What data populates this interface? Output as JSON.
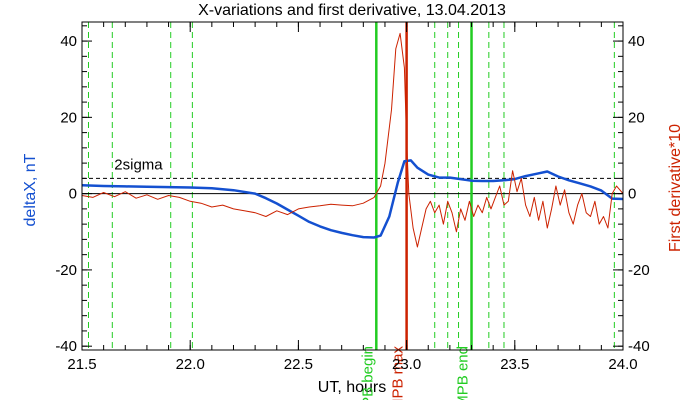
{
  "chart_data": {
    "type": "line",
    "title": "X-variations and first derivative, 13.04.2013",
    "xlabel": "UT, hours",
    "ylabel_left": "deltaX, nT",
    "ylabel_right": "First derivative*10",
    "xlim": [
      21.5,
      24.0
    ],
    "ylim": [
      -41,
      45
    ],
    "x_ticks": [
      "21.5",
      "22.0",
      "22.5",
      "23.0",
      "23.5",
      "24.0"
    ],
    "y_ticks": [
      "-40",
      "-20",
      "0",
      "20",
      "40"
    ],
    "colors": {
      "deltaX": "#1450d0",
      "derivative": "#cc2200",
      "markers": "#22cc22",
      "peak": "#cc2200",
      "axes": "#000000"
    },
    "threshold": {
      "label": "2sigma",
      "y": 4
    },
    "zero_line": 0,
    "grid_lines_x": [
      21.53,
      21.64,
      21.91,
      22.01,
      23.13,
      23.19,
      23.24,
      23.38,
      23.45,
      23.96
    ],
    "events": [
      {
        "label": "MPB begin",
        "x": 22.86,
        "color": "#22cc22"
      },
      {
        "label": "MPB max",
        "x": 23.0,
        "color": "#cc2200"
      },
      {
        "label": "MPB end",
        "x": 23.3,
        "color": "#22cc22"
      }
    ],
    "series": [
      {
        "name": "deltaX",
        "color": "#1450d0",
        "x": [
          21.5,
          21.6,
          21.7,
          21.8,
          21.9,
          22.0,
          22.1,
          22.2,
          22.3,
          22.35,
          22.4,
          22.45,
          22.5,
          22.55,
          22.6,
          22.65,
          22.7,
          22.75,
          22.8,
          22.85,
          22.88,
          22.92,
          22.96,
          22.99,
          23.02,
          23.05,
          23.1,
          23.15,
          23.2,
          23.25,
          23.3,
          23.35,
          23.4,
          23.45,
          23.5,
          23.55,
          23.6,
          23.65,
          23.7,
          23.75,
          23.8,
          23.85,
          23.9,
          23.95,
          24.0
        ],
        "y": [
          2.2,
          2,
          1.9,
          1.8,
          1.7,
          1.6,
          1.4,
          0.9,
          0,
          -1.2,
          -2.6,
          -4.2,
          -5.8,
          -7.4,
          -8.6,
          -9.6,
          -10.3,
          -10.9,
          -11.4,
          -11.5,
          -11,
          -6,
          3,
          8.5,
          8.7,
          6.8,
          5,
          4.2,
          4.2,
          3.8,
          3.4,
          3.3,
          3.3,
          3.5,
          3.8,
          4.6,
          5.2,
          5.8,
          4.5,
          3.5,
          2.7,
          1.9,
          0.8,
          -1.3,
          -1.4
        ]
      },
      {
        "name": "derivative",
        "color": "#cc2200",
        "x": [
          21.5,
          21.55,
          21.6,
          21.65,
          21.7,
          21.75,
          21.8,
          21.85,
          21.9,
          21.95,
          22.0,
          22.05,
          22.1,
          22.15,
          22.2,
          22.25,
          22.3,
          22.35,
          22.4,
          22.45,
          22.5,
          22.55,
          22.6,
          22.65,
          22.7,
          22.75,
          22.8,
          22.85,
          22.88,
          22.9,
          22.93,
          22.95,
          22.97,
          22.99,
          23.0,
          23.01,
          23.03,
          23.05,
          23.07,
          23.09,
          23.11,
          23.13,
          23.15,
          23.17,
          23.19,
          23.21,
          23.23,
          23.25,
          23.27,
          23.29,
          23.31,
          23.33,
          23.35,
          23.37,
          23.39,
          23.41,
          23.43,
          23.45,
          23.47,
          23.49,
          23.51,
          23.53,
          23.55,
          23.57,
          23.59,
          23.61,
          23.63,
          23.65,
          23.67,
          23.69,
          23.71,
          23.73,
          23.75,
          23.77,
          23.79,
          23.81,
          23.83,
          23.85,
          23.87,
          23.89,
          23.91,
          23.93,
          23.95,
          23.97,
          24.0
        ],
        "y": [
          -0.5,
          -1,
          0.3,
          -0.8,
          0.5,
          -1.2,
          -0.3,
          -1.5,
          -0.5,
          -1,
          -2,
          -2.5,
          -3.5,
          -3,
          -4,
          -4.5,
          -5,
          -6,
          -4.5,
          -5.5,
          -4,
          -3.5,
          -3.2,
          -2.8,
          -3,
          -3.2,
          -2.5,
          -1,
          2,
          8,
          22,
          38,
          42,
          33,
          14,
          0,
          -9,
          -14,
          -9,
          -4,
          -2,
          -5,
          -3,
          -8,
          -2,
          -5,
          -10,
          -4,
          -7,
          -2,
          -6,
          -3,
          -5,
          -1,
          -4,
          -1,
          2,
          -3,
          -2,
          6,
          0.5,
          4,
          -3,
          -6,
          -1,
          -7,
          -2,
          -9,
          -4,
          2,
          -3,
          1,
          -5,
          -8,
          -3,
          0,
          -5,
          -6,
          -2,
          -8,
          -6,
          -9,
          0,
          2,
          0
        ]
      }
    ]
  }
}
